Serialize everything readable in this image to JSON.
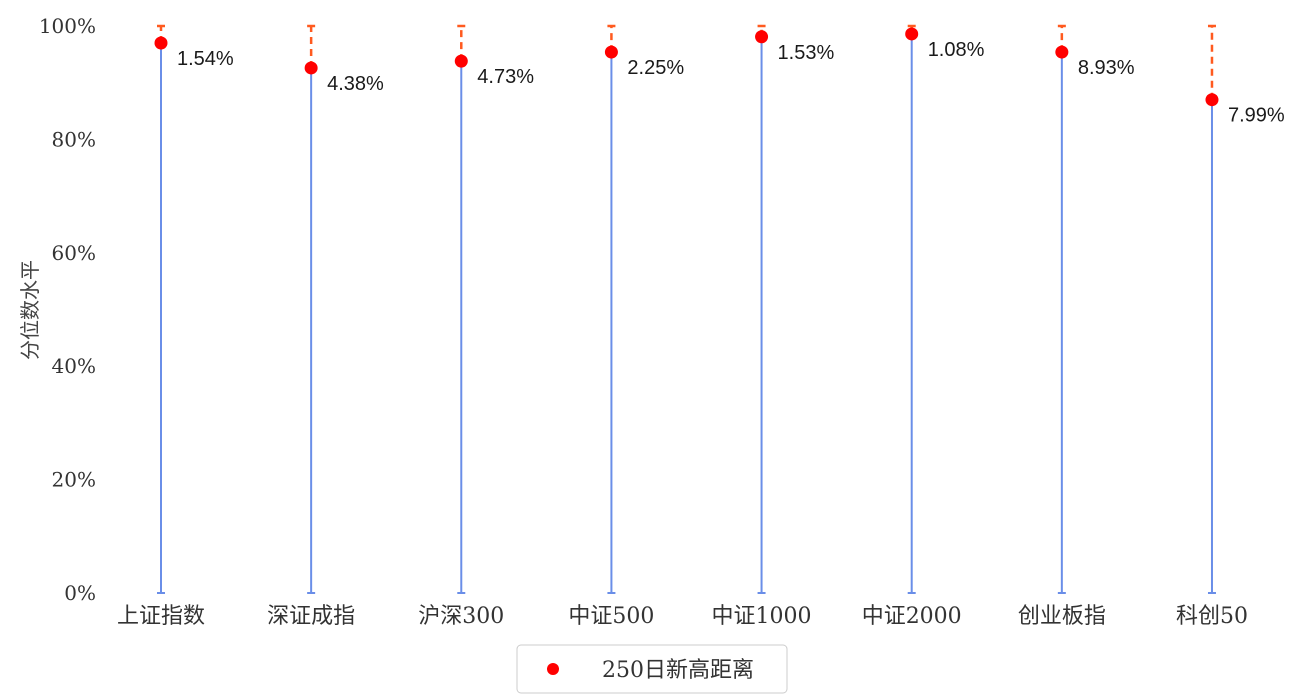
{
  "chart_data": {
    "type": "scatter",
    "categories": [
      "上证指数",
      "深证成指",
      "沪深300",
      "中证500",
      "中证1000",
      "中证2000",
      "创业板指",
      "科创50"
    ],
    "series": [
      {
        "name": "250日新高距离",
        "percentile": [
          97.0,
          92.6,
          93.8,
          95.4,
          98.1,
          98.6,
          95.4,
          87.0
        ],
        "labels": [
          "1.54%",
          "4.38%",
          "4.73%",
          "2.25%",
          "1.53%",
          "1.08%",
          "8.93%",
          "7.99%"
        ]
      }
    ],
    "ylabel": "分位数水平",
    "ylim": [
      0,
      100
    ],
    "yticks": [
      "0%",
      "20%",
      "40%",
      "60%",
      "80%",
      "100%"
    ],
    "colors": {
      "marker": "#ff0000",
      "stem": "#6a8ee8",
      "gap": "#ff5a1f"
    },
    "legend": {
      "position": "bottom-center",
      "label": "250日新高距离"
    }
  }
}
